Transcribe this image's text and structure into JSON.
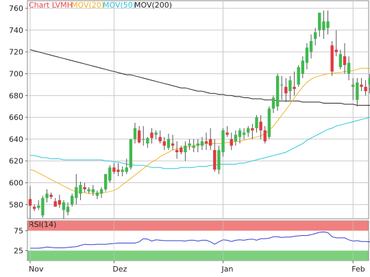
{
  "chart_data": [
    {
      "type": "candlestick",
      "legend": [
        {
          "label": "Chart LVMH",
          "color": "#e8474e"
        },
        {
          "label": "MOV(20)",
          "color": "#f0b22a"
        },
        {
          "label": "MOV(50)",
          "color": "#2ec4d8"
        },
        {
          "label": "MOV(200)",
          "color": "#222222"
        }
      ],
      "ylim": [
        567,
        767
      ],
      "yticks": [
        "580",
        "600",
        "620",
        "640",
        "660",
        "680",
        "700",
        "720",
        "740",
        "760"
      ],
      "xticks": [
        {
          "label": "Nov",
          "index": 0
        },
        {
          "label": "Dez",
          "index": 20
        },
        {
          "label": "Jan",
          "index": 46
        },
        {
          "label": "Feb",
          "index": 77
        }
      ],
      "last_value": 686,
      "colors": {
        "up": "#3fb94f",
        "down": "#e03a3e"
      },
      "candles": [
        [
          585,
          597,
          567,
          579
        ],
        [
          578,
          580,
          574,
          576
        ],
        [
          577,
          584,
          575,
          579
        ],
        [
          570,
          588,
          568,
          586
        ],
        [
          586,
          594,
          582,
          590
        ],
        [
          589,
          591,
          585,
          587
        ],
        [
          583,
          586,
          580,
          578
        ],
        [
          584,
          589,
          577,
          580
        ],
        [
          575,
          584,
          567,
          582
        ],
        [
          573,
          582,
          570,
          578
        ],
        [
          580,
          590,
          578,
          588
        ],
        [
          586,
          608,
          580,
          596
        ],
        [
          590,
          601,
          584,
          598
        ],
        [
          596,
          600,
          591,
          594
        ],
        [
          592,
          596,
          590,
          594
        ],
        [
          591,
          598,
          588,
          594
        ],
        [
          588,
          593,
          585,
          591
        ],
        [
          590,
          596,
          586,
          594
        ],
        [
          594,
          608,
          592,
          608
        ],
        [
          602,
          616,
          600,
          614
        ],
        [
          614,
          618,
          608,
          610
        ],
        [
          612,
          618,
          606,
          610
        ],
        [
          610,
          615,
          606,
          612
        ],
        [
          610,
          622,
          608,
          614
        ],
        [
          614,
          640,
          612,
          640
        ],
        [
          640,
          655,
          636,
          650
        ],
        [
          648,
          652,
          636,
          637
        ],
        [
          640,
          652,
          634,
          640
        ],
        [
          636,
          642,
          632,
          641
        ],
        [
          646,
          650,
          636,
          641
        ],
        [
          644,
          648,
          640,
          646
        ],
        [
          642,
          648,
          636,
          638
        ],
        [
          638,
          642,
          630,
          634
        ],
        [
          632,
          645,
          630,
          640
        ],
        [
          636,
          644,
          630,
          634
        ],
        [
          630,
          638,
          622,
          628
        ],
        [
          632,
          634,
          626,
          628
        ],
        [
          628,
          638,
          620,
          634
        ],
        [
          634,
          640,
          630,
          636
        ],
        [
          632,
          640,
          628,
          634
        ],
        [
          634,
          640,
          628,
          636
        ],
        [
          634,
          642,
          630,
          638
        ],
        [
          638,
          646,
          630,
          636
        ],
        [
          640,
          650,
          630,
          634
        ],
        [
          630,
          640,
          610,
          612
        ],
        [
          612,
          634,
          608,
          630
        ],
        [
          628,
          650,
          624,
          648
        ],
        [
          646,
          652,
          642,
          644
        ],
        [
          640,
          646,
          630,
          634
        ],
        [
          638,
          648,
          634,
          644
        ],
        [
          642,
          650,
          636,
          648
        ],
        [
          644,
          650,
          640,
          646
        ],
        [
          646,
          652,
          642,
          650
        ],
        [
          650,
          654,
          640,
          648
        ],
        [
          650,
          662,
          646,
          660
        ],
        [
          656,
          662,
          640,
          648
        ],
        [
          648,
          652,
          636,
          638
        ],
        [
          642,
          670,
          640,
          668
        ],
        [
          668,
          680,
          664,
          678
        ],
        [
          670,
          700,
          666,
          698
        ],
        [
          690,
          698,
          676,
          690
        ],
        [
          688,
          696,
          674,
          682
        ],
        [
          684,
          698,
          676,
          694
        ],
        [
          688,
          702,
          680,
          686
        ],
        [
          690,
          708,
          688,
          706
        ],
        [
          700,
          716,
          696,
          712
        ],
        [
          710,
          728,
          704,
          724
        ],
        [
          720,
          736,
          714,
          730
        ],
        [
          732,
          742,
          726,
          738
        ],
        [
          740,
          756,
          734,
          756
        ],
        [
          740,
          758,
          732,
          748
        ],
        [
          742,
          758,
          736,
          748
        ],
        [
          726,
          730,
          698,
          702
        ],
        [
          722,
          740,
          716,
          720
        ],
        [
          706,
          722,
          704,
          718
        ],
        [
          716,
          728,
          700,
          708
        ],
        [
          700,
          716,
          694,
          710
        ],
        [
          688,
          696,
          676,
          690
        ],
        [
          676,
          696,
          670,
          692
        ],
        [
          690,
          696,
          684,
          688
        ],
        [
          688,
          694,
          680,
          684
        ],
        [
          690,
          700,
          682,
          696
        ],
        [
          696,
          700,
          690,
          694
        ],
        [
          686,
          690,
          676,
          682
        ],
        [
          682,
          690,
          676,
          686
        ]
      ],
      "ma20": [
        612,
        611,
        609,
        607,
        605,
        603,
        601,
        599,
        597,
        595,
        593,
        592,
        591,
        591,
        590,
        590,
        590,
        591,
        591,
        592,
        593,
        595,
        598,
        601,
        604,
        607,
        610,
        613,
        616,
        619,
        621,
        624,
        626,
        628,
        630,
        631,
        632,
        633,
        633,
        634,
        635,
        635,
        636,
        636,
        636,
        636,
        636,
        637,
        637,
        638,
        638,
        639,
        640,
        641,
        642,
        643,
        645,
        648,
        652,
        657,
        662,
        667,
        672,
        678,
        683,
        688,
        692,
        695,
        697,
        698,
        699,
        700,
        700,
        701,
        701,
        702,
        702,
        703,
        704,
        705,
        705,
        705,
        706,
        707,
        707
      ],
      "ma50": [
        625,
        625,
        624,
        623,
        623,
        622,
        622,
        622,
        621,
        621,
        621,
        621,
        621,
        621,
        621,
        621,
        621,
        621,
        620,
        620,
        619,
        619,
        618,
        617,
        617,
        616,
        616,
        616,
        615,
        614,
        614,
        614,
        613,
        613,
        613,
        613,
        614,
        614,
        614,
        614,
        615,
        615,
        615,
        616,
        616,
        617,
        617,
        617,
        617,
        617,
        618,
        618,
        619,
        620,
        621,
        622,
        623,
        624,
        625,
        626,
        627,
        628,
        630,
        632,
        634,
        636,
        639,
        641,
        643,
        645,
        647,
        649,
        650,
        652,
        653,
        654,
        655,
        656,
        657,
        658,
        659,
        660,
        660,
        661,
        661
      ],
      "ma200": [
        722,
        721,
        720,
        719,
        718,
        717,
        716,
        715,
        714,
        713,
        712,
        711,
        710,
        709,
        708,
        707,
        706,
        705,
        704,
        703,
        702,
        701,
        700,
        699,
        699,
        698,
        697,
        696,
        695,
        694,
        693,
        692,
        691,
        690,
        689,
        688,
        687,
        687,
        686,
        685,
        684,
        684,
        683,
        682,
        682,
        681,
        681,
        680,
        680,
        679,
        679,
        678,
        678,
        677,
        677,
        677,
        676,
        676,
        676,
        675,
        675,
        675,
        675,
        675,
        675,
        674,
        674,
        674,
        674,
        674,
        673,
        673,
        673,
        673,
        673,
        672,
        672,
        672,
        671,
        671,
        671,
        671,
        670,
        670,
        670
      ]
    },
    {
      "type": "line",
      "title": "RSI(14)",
      "ylim": [
        0,
        100
      ],
      "yticks": [
        "25",
        "75"
      ],
      "upper_zone": [
        75,
        100
      ],
      "lower_zone": [
        0,
        25
      ],
      "values": [
        31,
        31,
        31,
        32,
        34,
        33,
        32,
        32,
        32,
        33,
        34,
        35,
        38,
        41,
        40,
        40,
        41,
        41,
        41,
        42,
        43,
        44,
        44,
        44,
        44,
        44,
        47,
        55,
        54,
        49,
        52,
        51,
        50,
        50,
        50,
        50,
        50,
        49,
        51,
        51,
        49,
        51,
        51,
        47,
        41,
        47,
        52,
        51,
        48,
        51,
        52,
        51,
        53,
        54,
        51,
        55,
        55,
        56,
        60,
        60,
        58,
        59,
        59,
        61,
        62,
        63,
        63,
        65,
        68,
        71,
        72,
        70,
        60,
        57,
        57,
        57,
        52,
        49,
        50,
        48,
        48,
        47,
        49,
        50,
        48
      ]
    }
  ]
}
